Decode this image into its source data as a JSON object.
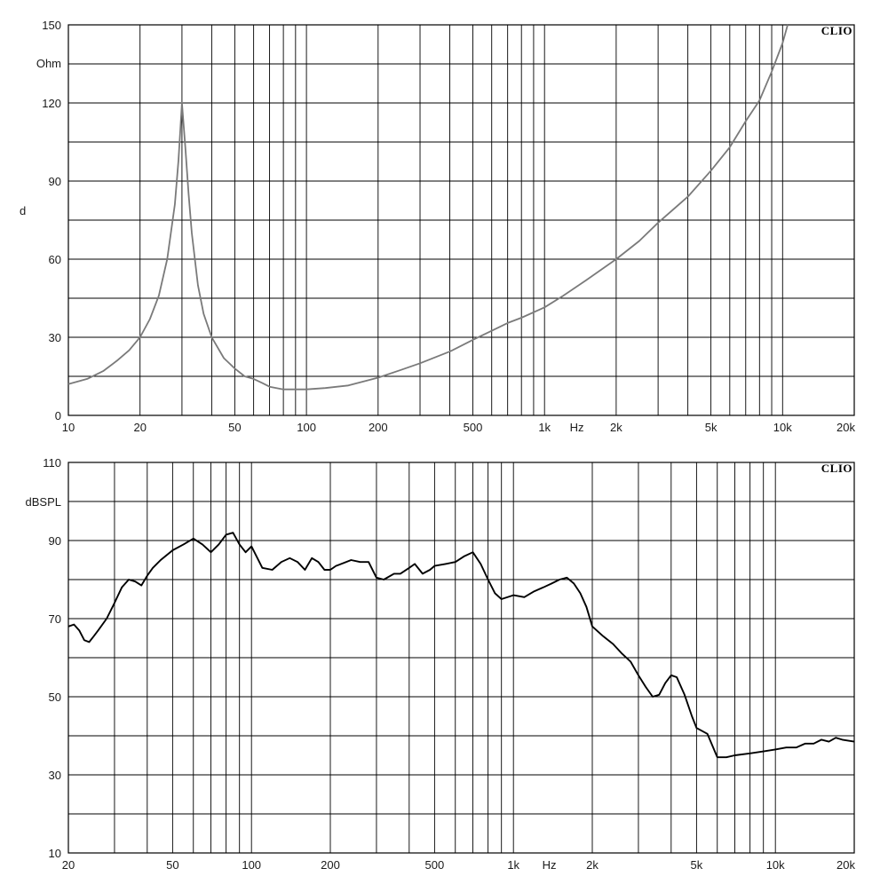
{
  "chart_data": [
    {
      "type": "line",
      "brand": "CLIO",
      "ylabel": "Ohm",
      "side_label": "d",
      "xunit": "Hz",
      "xscale": "log",
      "xlim": [
        10,
        20000
      ],
      "ylim": [
        0,
        150
      ],
      "grid": true,
      "series_color": "#7a7a7a",
      "x_ticks": [
        {
          "value": 10,
          "label": "10"
        },
        {
          "value": 20,
          "label": "20"
        },
        {
          "value": 50,
          "label": "50"
        },
        {
          "value": 100,
          "label": "100"
        },
        {
          "value": 200,
          "label": "200"
        },
        {
          "value": 500,
          "label": "500"
        },
        {
          "value": 1000,
          "label": "1k"
        },
        {
          "value": 2000,
          "label": "2k"
        },
        {
          "value": 5000,
          "label": "5k"
        },
        {
          "value": 10000,
          "label": "10k"
        },
        {
          "value": 20000,
          "label": "20k"
        }
      ],
      "y_ticks": [
        {
          "value": 0,
          "label": "0"
        },
        {
          "value": 30,
          "label": "30"
        },
        {
          "value": 60,
          "label": "60"
        },
        {
          "value": 90,
          "label": "90"
        },
        {
          "value": 120,
          "label": "120"
        },
        {
          "value": 150,
          "label": "150"
        }
      ],
      "series": [
        {
          "x": [
            10,
            12,
            14,
            16,
            18,
            20,
            22,
            24,
            26,
            28,
            29,
            30,
            31,
            32,
            33,
            35,
            37,
            40,
            45,
            50,
            55,
            60,
            65,
            70,
            80,
            90,
            100,
            120,
            150,
            200,
            250,
            300,
            400,
            500,
            600,
            700,
            800,
            1000,
            1200,
            1500,
            2000,
            2500,
            3000,
            4000,
            5000,
            6000,
            7000,
            8000,
            9000,
            10000,
            10500
          ],
          "y": [
            12,
            14,
            17,
            21,
            25,
            30,
            37,
            46,
            60,
            81,
            98,
            120,
            103,
            85,
            70,
            50,
            39,
            30,
            22,
            18,
            15,
            14,
            12.5,
            11,
            10,
            10,
            10,
            10.5,
            11.5,
            14.5,
            17.5,
            20,
            24.5,
            29,
            32.5,
            35.5,
            37.5,
            41.5,
            46,
            52,
            60,
            67,
            74,
            84,
            94,
            103,
            113,
            121,
            132,
            143,
            150
          ]
        }
      ]
    },
    {
      "type": "line",
      "brand": "CLIO",
      "ylabel": "dBSPL",
      "xunit": "Hz",
      "xscale": "log",
      "xlim": [
        20,
        20000
      ],
      "ylim": [
        10,
        110
      ],
      "grid": true,
      "series_color": "#000000",
      "x_ticks": [
        {
          "value": 20,
          "label": "20"
        },
        {
          "value": 50,
          "label": "50"
        },
        {
          "value": 100,
          "label": "100"
        },
        {
          "value": 200,
          "label": "200"
        },
        {
          "value": 500,
          "label": "500"
        },
        {
          "value": 1000,
          "label": "1k"
        },
        {
          "value": 2000,
          "label": "2k"
        },
        {
          "value": 5000,
          "label": "5k"
        },
        {
          "value": 10000,
          "label": "10k"
        },
        {
          "value": 20000,
          "label": "20k"
        }
      ],
      "y_ticks": [
        {
          "value": 10,
          "label": "10"
        },
        {
          "value": 30,
          "label": "30"
        },
        {
          "value": 50,
          "label": "50"
        },
        {
          "value": 70,
          "label": "70"
        },
        {
          "value": 90,
          "label": "90"
        },
        {
          "value": 110,
          "label": "110"
        }
      ],
      "series": [
        {
          "x": [
            20,
            21,
            22,
            23,
            24,
            25,
            26,
            28,
            30,
            32,
            34,
            36,
            38,
            40,
            42,
            45,
            50,
            55,
            60,
            65,
            70,
            75,
            80,
            85,
            90,
            95,
            100,
            110,
            120,
            130,
            140,
            150,
            160,
            170,
            180,
            190,
            200,
            210,
            220,
            240,
            260,
            280,
            300,
            320,
            350,
            370,
            400,
            420,
            450,
            480,
            500,
            550,
            600,
            650,
            700,
            750,
            800,
            850,
            900,
            1000,
            1100,
            1200,
            1300,
            1400,
            1500,
            1600,
            1700,
            1800,
            1900,
            2000,
            2200,
            2400,
            2600,
            2800,
            3000,
            3200,
            3400,
            3600,
            3800,
            4000,
            4200,
            4500,
            4800,
            5000,
            5500,
            6000,
            6500,
            7000,
            8000,
            9000,
            10000,
            11000,
            12000,
            13000,
            14000,
            15000,
            16000,
            17000,
            18000,
            20000
          ],
          "y": [
            68,
            68.5,
            67,
            64.5,
            64,
            65.5,
            67,
            70,
            74,
            78,
            80,
            79.5,
            78.5,
            81,
            83,
            85,
            87.5,
            89,
            90.5,
            89,
            87,
            89,
            91.5,
            92,
            89,
            87,
            88.5,
            83,
            82.5,
            84.5,
            85.5,
            84.5,
            82.5,
            85.5,
            84.5,
            82.5,
            82.5,
            83.5,
            84,
            85,
            84.5,
            84.5,
            80.5,
            80,
            81.5,
            81.5,
            83,
            84,
            81.5,
            82.5,
            83.5,
            84,
            84.5,
            86,
            87,
            84,
            80,
            76.5,
            75,
            76,
            75.5,
            77,
            78,
            79,
            80,
            80.5,
            79,
            76.5,
            73,
            68,
            65.5,
            63.5,
            61,
            59,
            55.5,
            52.5,
            50,
            50.5,
            53.5,
            55.5,
            55,
            50.5,
            45,
            42,
            40.5,
            34.5,
            34.5,
            35,
            35.5,
            36,
            36.5,
            37,
            37,
            38,
            38,
            39,
            38.5,
            39.5,
            39,
            38.5
          ]
        }
      ]
    }
  ]
}
